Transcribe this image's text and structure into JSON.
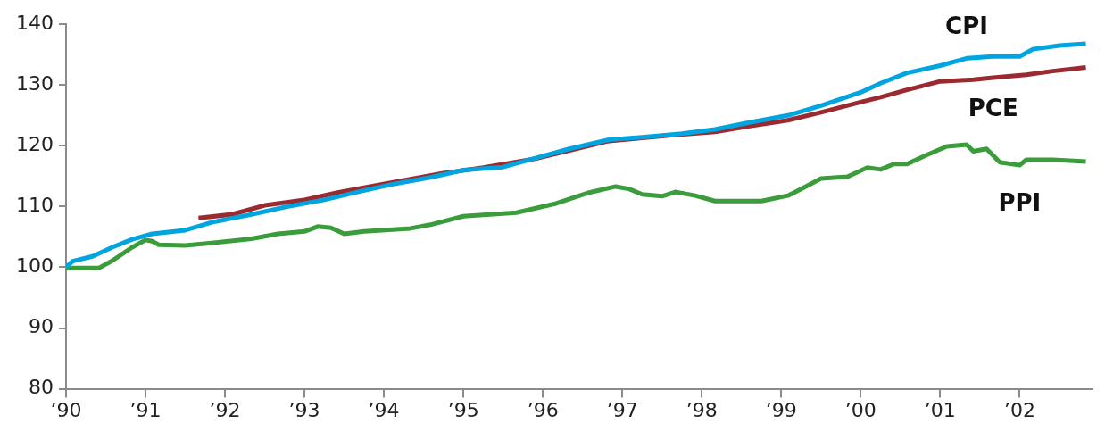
{
  "chart_data": {
    "type": "line",
    "xlim": [
      "1990-01",
      "2002-12"
    ],
    "xticks": [
      {
        "value": "1990-01",
        "label": "’90"
      },
      {
        "value": "1991-01",
        "label": "’91"
      },
      {
        "value": "1992-01",
        "label": "’92"
      },
      {
        "value": "1993-01",
        "label": "’93"
      },
      {
        "value": "1994-01",
        "label": "’94"
      },
      {
        "value": "1995-01",
        "label": "’95"
      },
      {
        "value": "1996-01",
        "label": "’96"
      },
      {
        "value": "1997-01",
        "label": "’97"
      },
      {
        "value": "1998-01",
        "label": "’98"
      },
      {
        "value": "1999-01",
        "label": "’99"
      },
      {
        "value": "2000-01",
        "label": "’00"
      },
      {
        "value": "2001-01",
        "label": "’01"
      },
      {
        "value": "2002-01",
        "label": "’02"
      }
    ],
    "ylim": [
      80,
      140
    ],
    "yticks": [
      80,
      90,
      100,
      110,
      120,
      130,
      140
    ],
    "grid": false,
    "legend": false,
    "marker": "none",
    "series": [
      {
        "name": "CPI",
        "color": "#00a5e0",
        "x": [
          "1990-01",
          "1990-02",
          "1990-05",
          "1990-08",
          "1990-11",
          "1991-02",
          "1991-07",
          "1991-11",
          "1992-05",
          "1992-10",
          "1993-04",
          "1993-09",
          "1994-02",
          "1994-08",
          "1995-01",
          "1995-07",
          "1995-12",
          "1996-05",
          "1996-11",
          "1997-04",
          "1997-10",
          "1998-03",
          "1998-08",
          "1999-02",
          "1999-07",
          "2000-01",
          "2000-04",
          "2000-08",
          "2001-01",
          "2001-05",
          "2001-09",
          "2002-01",
          "2002-03",
          "2002-07",
          "2002-11"
        ],
        "values": [
          100,
          101,
          101.8,
          103.3,
          104.6,
          105.5,
          106.1,
          107.4,
          108.7,
          109.9,
          111.1,
          112.4,
          113.6,
          114.8,
          116,
          116.5,
          118,
          119.5,
          121,
          121.4,
          122,
          122.7,
          123.8,
          125,
          126.6,
          128.8,
          130.3,
          132,
          133.2,
          134.4,
          134.7,
          134.7,
          135.9,
          136.5,
          136.8
        ]
      },
      {
        "name": "PCE",
        "color": "#9b2a30",
        "x": [
          "1991-09",
          "1992-02",
          "1992-07",
          "1993-01",
          "1993-06",
          "1993-12",
          "1994-05",
          "1994-10",
          "1995-04",
          "1995-12",
          "1996-11",
          "1997-08",
          "1998-03",
          "1998-08",
          "1999-02",
          "1999-07",
          "2000-01",
          "2000-04",
          "2000-08",
          "2001-01",
          "2001-06",
          "2001-09",
          "2002-02",
          "2002-06",
          "2002-11"
        ],
        "values": [
          108.1,
          108.7,
          110.2,
          111.1,
          112.3,
          113.5,
          114.5,
          115.5,
          116.4,
          117.9,
          120.8,
          121.7,
          122.3,
          123.2,
          124.2,
          125.5,
          127.2,
          128,
          129.2,
          130.6,
          130.9,
          131.2,
          131.7,
          132.3,
          132.9
        ]
      },
      {
        "name": "PPI",
        "color": "#3a9c3a",
        "x": [
          "1990-01",
          "1990-06",
          "1990-08",
          "1990-11",
          "1991-01",
          "1991-02",
          "1991-03",
          "1991-07",
          "1991-11",
          "1992-05",
          "1992-09",
          "1993-01",
          "1993-03",
          "1993-05",
          "1993-07",
          "1993-10",
          "1994-05",
          "1994-08",
          "1995-01",
          "1995-09",
          "1996-03",
          "1996-08",
          "1996-12",
          "1997-02",
          "1997-04",
          "1997-07",
          "1997-09",
          "1997-12",
          "1998-03",
          "1998-10",
          "1999-02",
          "1999-04",
          "1999-07",
          "1999-11",
          "2000-02",
          "2000-04",
          "2000-06",
          "2000-08",
          "2000-11",
          "2001-02",
          "2001-05",
          "2001-06",
          "2001-08",
          "2001-10",
          "2002-01",
          "2002-02",
          "2002-06",
          "2002-11"
        ],
        "values": [
          99.9,
          99.9,
          101.1,
          103.3,
          104.5,
          104.3,
          103.7,
          103.6,
          104,
          104.7,
          105.5,
          105.9,
          106.7,
          106.5,
          105.5,
          105.9,
          106.4,
          107,
          108.4,
          109,
          110.5,
          112.3,
          113.3,
          112.9,
          112,
          111.7,
          112.4,
          111.8,
          110.9,
          110.9,
          111.8,
          112.9,
          114.6,
          114.9,
          116.4,
          116.1,
          117,
          117,
          118.5,
          119.9,
          120.2,
          119.1,
          119.5,
          117.3,
          116.8,
          117.7,
          117.7,
          117.4
        ]
      }
    ]
  }
}
